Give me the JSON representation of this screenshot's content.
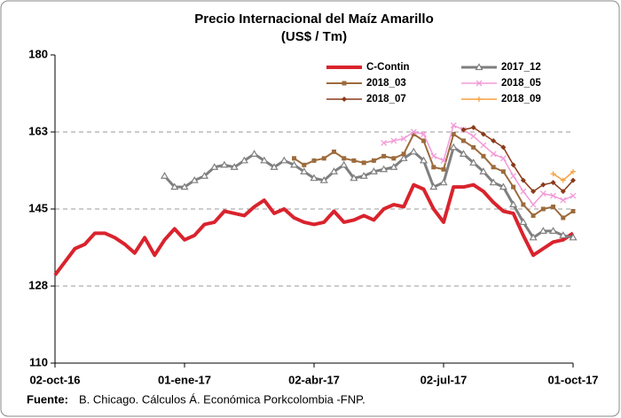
{
  "chart_data": {
    "type": "line",
    "title": "Precio Internacional del Maíz Amarillo",
    "subtitle": "(US$ / Tm)",
    "source_label": "Fuente:",
    "source": "B. Chicago. Cálculos Á. Económica Porkcolombia -FNP.",
    "x": [
      "2016-10-02",
      "2016-10-09",
      "2016-10-16",
      "2016-10-23",
      "2016-10-30",
      "2016-11-06",
      "2016-11-13",
      "2016-11-20",
      "2016-11-27",
      "2016-12-04",
      "2016-12-11",
      "2016-12-18",
      "2016-12-25",
      "2017-01-01",
      "2017-01-08",
      "2017-01-15",
      "2017-01-22",
      "2017-01-29",
      "2017-02-05",
      "2017-02-12",
      "2017-02-19",
      "2017-02-26",
      "2017-03-05",
      "2017-03-12",
      "2017-03-19",
      "2017-03-26",
      "2017-04-02",
      "2017-04-09",
      "2017-04-16",
      "2017-04-23",
      "2017-04-30",
      "2017-05-07",
      "2017-05-14",
      "2017-05-21",
      "2017-05-28",
      "2017-06-04",
      "2017-06-11",
      "2017-06-18",
      "2017-06-25",
      "2017-07-02",
      "2017-07-09",
      "2017-07-16",
      "2017-07-23",
      "2017-07-30",
      "2017-08-06",
      "2017-08-13",
      "2017-08-20",
      "2017-08-27",
      "2017-09-03",
      "2017-09-10",
      "2017-09-17",
      "2017-09-24",
      "2017-10-01"
    ],
    "xlim": [
      "2016-10-02",
      "2017-10-01"
    ],
    "xticks": [
      {
        "value": "2016-10-02",
        "label": "02-oct-16"
      },
      {
        "value": "2017-01-01",
        "label": "01-ene-17"
      },
      {
        "value": "2017-04-02",
        "label": "02-abr-17"
      },
      {
        "value": "2017-07-02",
        "label": "02-jul-17"
      },
      {
        "value": "2017-10-01",
        "label": "01-oct-17"
      }
    ],
    "ylim": [
      110,
      180
    ],
    "yticks": [
      110,
      {
        "value": 127.5,
        "label": "128"
      },
      145,
      {
        "value": 162.5,
        "label": "163"
      },
      180
    ],
    "grid": true,
    "legend": "top-right",
    "series": [
      {
        "name": "C-Contin",
        "color": "#d9232d",
        "marker": "none",
        "width": 4,
        "values": [
          130,
          133,
          136,
          137,
          139.5,
          139.5,
          138.5,
          137,
          135,
          138.5,
          134.5,
          138,
          140.5,
          138,
          139,
          141.5,
          142,
          144.5,
          144,
          143.5,
          145.5,
          147,
          144,
          145,
          143,
          142,
          141.5,
          142,
          144.5,
          142,
          142.5,
          143.5,
          142.5,
          145,
          146,
          145.5,
          150.5,
          149.5,
          145,
          142,
          150,
          150,
          150.5,
          149,
          146.5,
          144.5,
          144,
          139,
          134.5,
          136,
          137.5,
          138,
          139.5
        ]
      },
      {
        "name": "2017_12",
        "color": "#7f7f7f",
        "marker": "triangle",
        "width": 3,
        "values": [
          null,
          null,
          null,
          null,
          null,
          null,
          null,
          null,
          null,
          null,
          null,
          152.5,
          150,
          150,
          151.5,
          152.5,
          154.5,
          155,
          154.5,
          156,
          157.5,
          156,
          154.5,
          156,
          155,
          153.5,
          152,
          151.5,
          153.5,
          155,
          152,
          152.5,
          153.5,
          154,
          154.5,
          156.5,
          158,
          156,
          150,
          151,
          159,
          157.5,
          155.5,
          153.5,
          151,
          150,
          146,
          142,
          138.5,
          140,
          140,
          139,
          138.5
        ]
      },
      {
        "name": "2018_03",
        "color": "#9c6b3c",
        "marker": "square",
        "width": 2,
        "values": [
          null,
          null,
          null,
          null,
          null,
          null,
          null,
          null,
          null,
          null,
          null,
          null,
          null,
          null,
          null,
          null,
          null,
          null,
          null,
          null,
          null,
          null,
          null,
          null,
          156.5,
          155,
          156,
          156.5,
          158,
          156.5,
          156,
          155.5,
          156,
          157,
          156.5,
          157.5,
          162,
          160.5,
          154.5,
          154,
          162,
          160.5,
          159,
          157,
          154.5,
          153.5,
          150,
          146,
          143.5,
          145,
          145.5,
          143,
          144.5
        ]
      },
      {
        "name": "2018_05",
        "color": "#f29bd8",
        "marker": "cross",
        "width": 1.5,
        "values": [
          null,
          null,
          null,
          null,
          null,
          null,
          null,
          null,
          null,
          null,
          null,
          null,
          null,
          null,
          null,
          null,
          null,
          null,
          null,
          null,
          null,
          null,
          null,
          null,
          null,
          null,
          null,
          null,
          null,
          null,
          null,
          null,
          null,
          160,
          160.5,
          161,
          162.5,
          162,
          157,
          156,
          164,
          163,
          161.5,
          159.5,
          157.5,
          156.5,
          152.5,
          149,
          146,
          148.5,
          148,
          147,
          148
        ]
      },
      {
        "name": "2018_07",
        "color": "#8b3a1a",
        "marker": "diamond",
        "width": 1.5,
        "values": [
          null,
          null,
          null,
          null,
          null,
          null,
          null,
          null,
          null,
          null,
          null,
          null,
          null,
          null,
          null,
          null,
          null,
          null,
          null,
          null,
          null,
          null,
          null,
          null,
          null,
          null,
          null,
          null,
          null,
          null,
          null,
          null,
          null,
          null,
          null,
          null,
          null,
          null,
          null,
          null,
          null,
          163,
          163.5,
          162,
          160.5,
          159,
          155,
          151.5,
          149,
          150.5,
          151,
          149,
          151.5
        ]
      },
      {
        "name": "2018_09",
        "color": "#f7a13c",
        "marker": "dash",
        "width": 1.5,
        "values": [
          null,
          null,
          null,
          null,
          null,
          null,
          null,
          null,
          null,
          null,
          null,
          null,
          null,
          null,
          null,
          null,
          null,
          null,
          null,
          null,
          null,
          null,
          null,
          null,
          null,
          null,
          null,
          null,
          null,
          null,
          null,
          null,
          null,
          null,
          null,
          null,
          null,
          null,
          null,
          null,
          null,
          null,
          null,
          null,
          null,
          null,
          null,
          null,
          null,
          null,
          153,
          151.5,
          153.5
        ]
      }
    ]
  }
}
